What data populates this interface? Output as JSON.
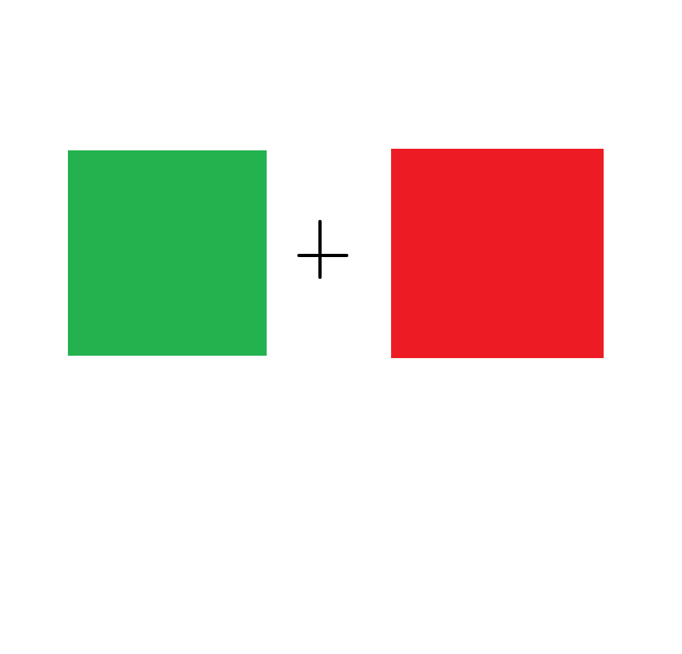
{
  "diagram": {
    "shapes": [
      {
        "name": "green-square",
        "color": "#24b24f"
      },
      {
        "name": "red-square",
        "color": "#ed1c24"
      }
    ],
    "operator": {
      "symbol": "plus-icon",
      "color": "#000000"
    }
  }
}
